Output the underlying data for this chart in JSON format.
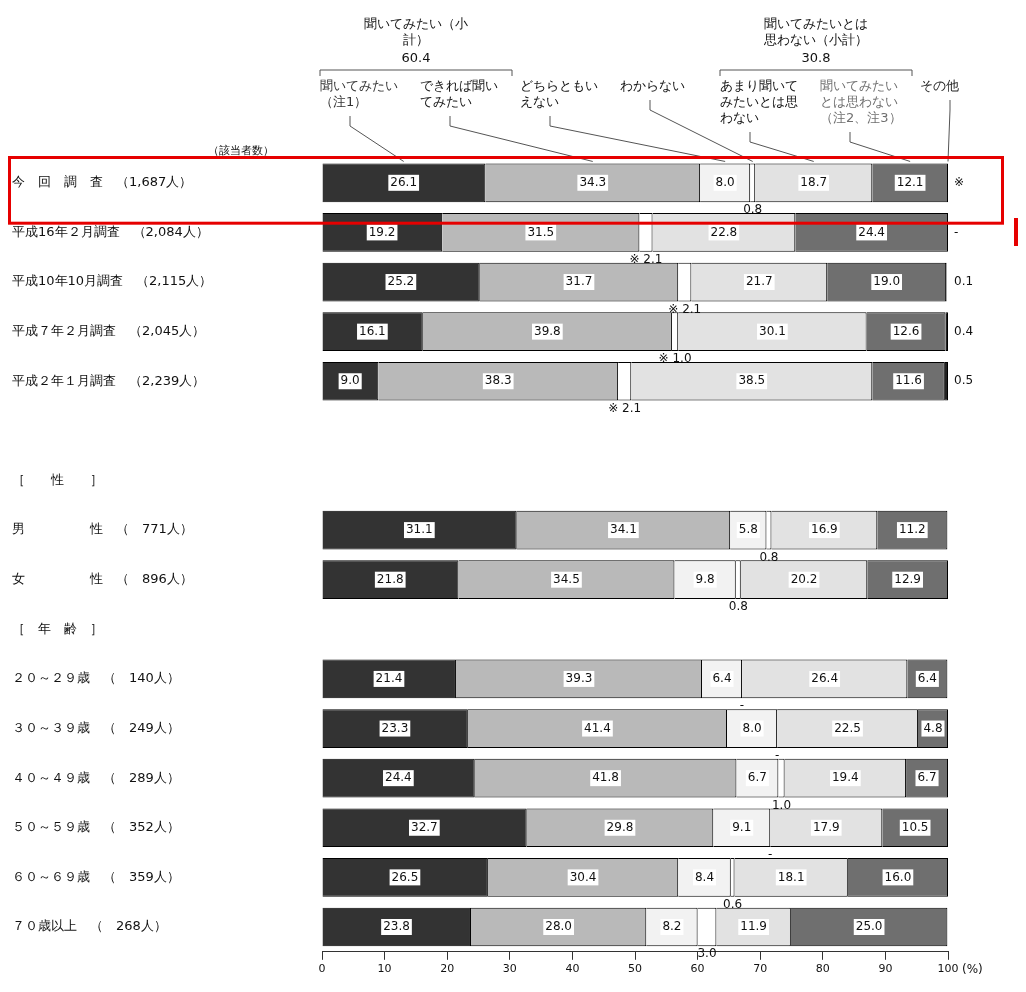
{
  "chart_data": {
    "type": "bar",
    "orientation": "horizontal",
    "stacked": true,
    "legend": "top",
    "grid": false,
    "xlabel": "(%)",
    "xlim": [
      0,
      100
    ],
    "xticks": [
      0,
      10,
      20,
      30,
      40,
      50,
      60,
      70,
      80,
      90,
      100
    ],
    "categories": [
      "今　回　調　査　（1,687人）",
      "平成16年２月調査　（2,084人）",
      "平成10年10月調査　（2,115人）",
      "平成７年２月調査　（2,045人）",
      "平成２年１月調査　（2,239人）",
      null,
      "［　　性　　］",
      "男　　　　　性　（　771人）",
      "女　　　　　性　（　896人）",
      "［　年　齢　］",
      "２０～２９歳　（　140人）",
      "３０～３９歳　（　249人）",
      "４０～４９歳　（　289人）",
      "５０～５９歳　（　352人）",
      "６０～６９歳　（　359人）",
      "７０歳以上　（　268人）"
    ],
    "series": [
      {
        "name": "聞いてみたい（注1）",
        "color": "#333333",
        "values": [
          26.1,
          19.2,
          25.2,
          16.1,
          9.0,
          null,
          null,
          31.1,
          21.8,
          null,
          21.4,
          23.3,
          24.4,
          32.7,
          26.5,
          23.8
        ],
        "value_labels": [
          "26.1",
          "19.2",
          "25.2",
          "16.1",
          "9.0",
          null,
          null,
          "31.1",
          "21.8",
          null,
          "21.4",
          "23.3",
          "24.4",
          "32.7",
          "26.5",
          "23.8"
        ]
      },
      {
        "name": "できれば聞いてみたい",
        "color": "#b9b9b9",
        "values": [
          34.3,
          31.5,
          31.7,
          39.8,
          38.3,
          null,
          null,
          34.1,
          34.5,
          null,
          39.3,
          41.4,
          41.8,
          29.8,
          30.4,
          28.0
        ],
        "value_labels": [
          "34.3",
          "31.5",
          "31.7",
          "39.8",
          "38.3",
          null,
          null,
          "34.1",
          "34.5",
          null,
          "39.3",
          "41.4",
          "41.8",
          "29.8",
          "30.4",
          "28.0"
        ]
      },
      {
        "name": "どちらともいえない",
        "color": "#f2f2f2",
        "values": [
          8.0,
          null,
          null,
          null,
          null,
          null,
          null,
          5.8,
          9.8,
          null,
          6.4,
          8.0,
          6.7,
          9.1,
          8.4,
          8.2
        ],
        "value_labels": [
          "8.0",
          null,
          null,
          null,
          null,
          null,
          null,
          "5.8",
          "9.8",
          null,
          "6.4",
          "8.0",
          "6.7",
          "9.1",
          "8.4",
          "8.2"
        ]
      },
      {
        "name": "わからない",
        "color": "#ffffff",
        "values": [
          0.8,
          2.1,
          2.1,
          1.0,
          2.1,
          null,
          null,
          0.8,
          0.8,
          null,
          null,
          null,
          1.0,
          null,
          0.6,
          3.0
        ],
        "value_labels": [
          "0.8",
          "※ 2.1",
          "※ 2.1",
          "※ 1.0",
          "※ 2.1",
          null,
          null,
          "0.8",
          "0.8",
          null,
          "-",
          "-",
          "1.0",
          "-",
          "0.6",
          "3.0"
        ]
      },
      {
        "name": "あまり聞いてみたいとは思わない",
        "color": "#e2e2e2",
        "values": [
          18.7,
          22.8,
          21.7,
          30.1,
          38.5,
          null,
          null,
          16.9,
          20.2,
          null,
          26.4,
          22.5,
          19.4,
          17.9,
          18.1,
          11.9
        ],
        "value_labels": [
          "18.7",
          "22.8",
          "21.7",
          "30.1",
          "38.5",
          null,
          null,
          "16.9",
          "20.2",
          null,
          "26.4",
          "22.5",
          "19.4",
          "17.9",
          "18.1",
          "11.9"
        ]
      },
      {
        "name": "聞いてみたいとは思わない（注2、注3）",
        "color": "#6f6f6f",
        "values": [
          12.1,
          24.4,
          19.0,
          12.6,
          11.6,
          null,
          null,
          11.2,
          12.9,
          null,
          6.4,
          4.8,
          6.7,
          10.5,
          16.0,
          25.0
        ],
        "value_labels": [
          "12.1",
          "24.4",
          "19.0",
          "12.6",
          "11.6",
          null,
          null,
          "11.2",
          "12.9",
          null,
          "6.4",
          "4.8",
          "6.7",
          "10.5",
          "16.0",
          "25.0"
        ]
      },
      {
        "name": "その他",
        "color": "#222222",
        "values": [
          null,
          null,
          0.1,
          0.4,
          0.5,
          null,
          null,
          null,
          null,
          null,
          null,
          null,
          null,
          null,
          null,
          null
        ],
        "value_labels": [
          "※",
          "-",
          "0.1",
          "0.4",
          "0.5",
          null,
          null,
          null,
          null,
          null,
          null,
          null,
          null,
          null,
          null,
          null
        ]
      }
    ],
    "annotations": [
      "聞いてみたい（小計）",
      "60.4",
      "聞いてみたいとは思わない（小計）",
      "30.8",
      "（該当者数）"
    ]
  }
}
